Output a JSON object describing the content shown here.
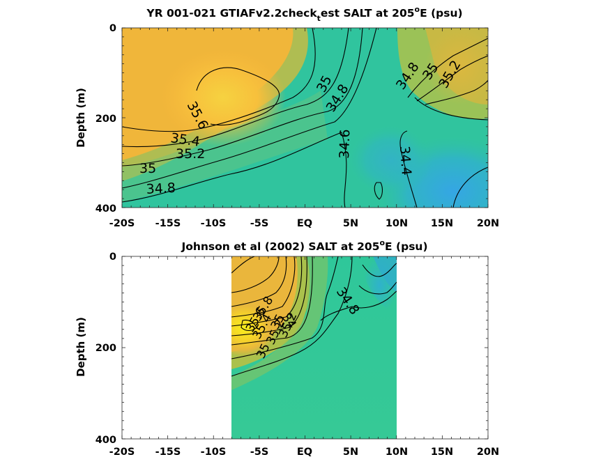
{
  "chart_data": [
    {
      "type": "heatmap",
      "title": "YR 001-021 GTIAFv2.2check_test SALT at 205°E (psu)",
      "title_parts": {
        "before": "YR 001-021 GTIAFv2.2check",
        "sub": "t",
        "mid": "est SALT at 205",
        "sup": "o",
        "after": "E (psu)"
      },
      "xlabel": "",
      "ylabel": "Depth (m)",
      "x_ticks": [
        "-20S",
        "-15S",
        "-10S",
        "-5S",
        "EQ",
        "5N",
        "10N",
        "15N",
        "20N"
      ],
      "y_ticks": [
        "0",
        "200",
        "400"
      ],
      "xlim": [
        -20,
        20
      ],
      "ylim": [
        0,
        400
      ],
      "y_reversed": true,
      "contour_labels": [
        "35.6",
        "35.4",
        "35.2",
        "35",
        "34.8",
        "35",
        "34.8",
        "34.6",
        "34.4",
        "34.8",
        "35",
        "35.2"
      ],
      "colormap": [
        "#3aa0e8",
        "#2ec5a0",
        "#a8c84a",
        "#f0b83a",
        "#f8e820"
      ]
    },
    {
      "type": "heatmap",
      "title": "Johnson et al (2002) SALT at 205°E (psu)",
      "title_parts": {
        "before": "Johnson et al (2002) SALT at 205",
        "sup": "o",
        "after": "E (psu)"
      },
      "xlabel": "",
      "ylabel": "Depth (m)",
      "x_ticks": [
        "-20S",
        "-15S",
        "-10S",
        "-5S",
        "EQ",
        "5N",
        "10N",
        "15N",
        "20N"
      ],
      "y_ticks": [
        "0",
        "200",
        "400"
      ],
      "xlim": [
        -20,
        20
      ],
      "ylim": [
        0,
        400
      ],
      "y_reversed": true,
      "data_xrange": [
        -8,
        10
      ],
      "contour_labels": [
        "34.8",
        "35",
        "35.2",
        "35.4",
        "35.6",
        "35.8",
        "35",
        "35.2",
        "34"
      ]
    }
  ]
}
